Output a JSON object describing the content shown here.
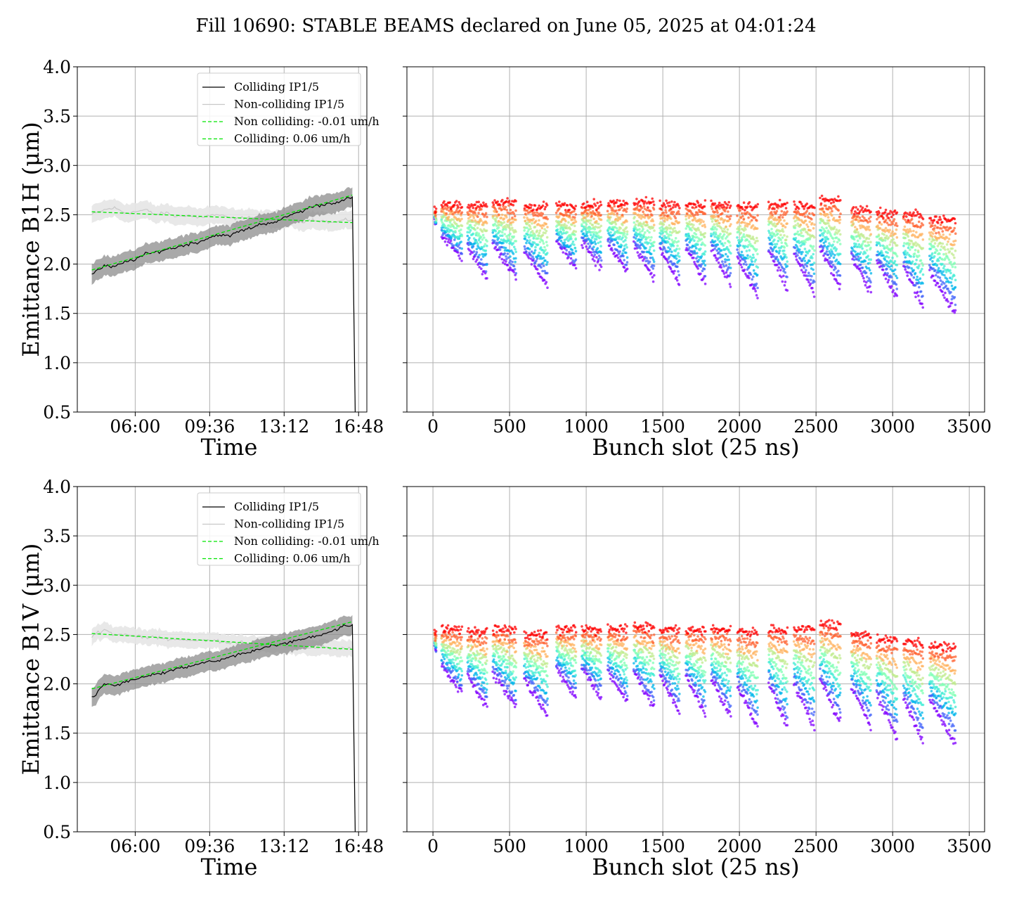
{
  "figure": {
    "suptitle": "Fill 10690: STABLE BEAMS declared on June 05, 2025 at 04:01:24"
  },
  "colors": {
    "colliding": "#000000",
    "non_colliding": "#c8c8c8",
    "band_colliding": "#8c8c8c",
    "band_non_colliding": "#e6e6e6",
    "fit": "#00e600",
    "grid": "#b0b0b0",
    "rainbow": [
      "#8000ff",
      "#4062fa",
      "#00b5eb",
      "#40ecd4",
      "#80ffb4",
      "#c0eb8d",
      "#ffb360",
      "#ff6230",
      "#ff0000"
    ]
  },
  "chart_data": [
    {
      "type": "line",
      "panel": "B1H-time",
      "xlabel": "Time",
      "ylabel": "Emittance B1H (μm)",
      "xticks": [
        "06:00",
        "09:36",
        "13:12",
        "16:48"
      ],
      "xtick_hours": [
        6.0,
        9.6,
        13.2,
        16.8
      ],
      "xlim_hours": [
        3.2,
        17.2
      ],
      "ylim": [
        0.5,
        4.0
      ],
      "yticks": [
        "0.5",
        "1.0",
        "1.5",
        "2.0",
        "2.5",
        "3.0",
        "3.5",
        "4.0"
      ],
      "grid": true,
      "legend_placement": "upper right",
      "legend": [
        "Colliding IP1/5",
        "Non-colliding IP1/5",
        "Non colliding: -0.01 um/h",
        "Colliding: 0.06 um/h"
      ],
      "series": [
        {
          "name": "Colliding IP1/5",
          "x_hours": [
            3.9,
            4.5,
            5.0,
            5.5,
            6.0,
            6.5,
            7.0,
            7.5,
            8.0,
            8.5,
            9.0,
            9.5,
            10.0,
            10.5,
            11.0,
            11.5,
            12.0,
            12.5,
            13.0,
            13.5,
            14.0,
            14.5,
            15.0,
            15.5,
            16.0,
            16.5
          ],
          "values": [
            1.9,
            1.98,
            1.97,
            2.02,
            2.05,
            2.1,
            2.12,
            2.15,
            2.17,
            2.2,
            2.22,
            2.26,
            2.3,
            2.28,
            2.33,
            2.36,
            2.4,
            2.42,
            2.44,
            2.5,
            2.53,
            2.58,
            2.6,
            2.62,
            2.64,
            2.68
          ],
          "band_halfwidth": 0.1
        },
        {
          "name": "Non-colliding IP1/5",
          "x_hours": [
            3.9,
            4.5,
            5.0,
            5.5,
            6.0,
            6.5,
            7.0,
            7.5,
            8.0,
            8.5,
            9.0,
            9.5,
            10.0,
            10.5,
            11.0,
            11.5,
            12.0,
            12.5,
            13.0,
            13.5,
            14.0,
            14.5,
            15.0,
            15.5,
            16.0,
            16.5
          ],
          "values": [
            2.5,
            2.55,
            2.57,
            2.52,
            2.53,
            2.55,
            2.5,
            2.52,
            2.48,
            2.5,
            2.47,
            2.49,
            2.5,
            2.47,
            2.46,
            2.48,
            2.45,
            2.46,
            2.44,
            2.47,
            2.43,
            2.45,
            2.44,
            2.42,
            2.44,
            2.45
          ],
          "band_halfwidth": 0.09
        },
        {
          "name": "Non colliding: -0.01 um/h",
          "x_hours": [
            3.9,
            16.5
          ],
          "values": [
            2.53,
            2.42
          ]
        },
        {
          "name": "Colliding: 0.06 um/h",
          "x_hours": [
            3.9,
            16.5
          ],
          "values": [
            1.94,
            2.7
          ]
        }
      ]
    },
    {
      "type": "scatter",
      "panel": "B1H-bunch",
      "xlabel": "Bunch slot (25 ns)",
      "xticks": [
        0,
        500,
        1000,
        1500,
        2000,
        2500,
        3000,
        3500
      ],
      "xlim": [
        -170,
        3600
      ],
      "ylim": [
        0.5,
        4.0
      ],
      "grid": true,
      "colormap": "rainbow (purple = early, red = late)",
      "trains": [
        {
          "start": 10,
          "end": 20,
          "top": 2.55,
          "low": 2.35
        },
        {
          "start": 55,
          "end": 190,
          "top": 2.6,
          "low": 2.05
        },
        {
          "start": 225,
          "end": 355,
          "top": 2.6,
          "low": 1.85
        },
        {
          "start": 390,
          "end": 545,
          "top": 2.62,
          "low": 1.85
        },
        {
          "start": 595,
          "end": 750,
          "top": 2.58,
          "low": 1.78
        },
        {
          "start": 805,
          "end": 935,
          "top": 2.58,
          "low": 1.95
        },
        {
          "start": 970,
          "end": 1100,
          "top": 2.6,
          "low": 1.95
        },
        {
          "start": 1140,
          "end": 1270,
          "top": 2.62,
          "low": 1.9
        },
        {
          "start": 1310,
          "end": 1445,
          "top": 2.62,
          "low": 1.85
        },
        {
          "start": 1480,
          "end": 1610,
          "top": 2.6,
          "low": 1.8
        },
        {
          "start": 1650,
          "end": 1780,
          "top": 2.6,
          "low": 1.8
        },
        {
          "start": 1815,
          "end": 1945,
          "top": 2.6,
          "low": 1.8
        },
        {
          "start": 1985,
          "end": 2120,
          "top": 2.58,
          "low": 1.65
        },
        {
          "start": 2190,
          "end": 2315,
          "top": 2.6,
          "low": 1.75
        },
        {
          "start": 2355,
          "end": 2490,
          "top": 2.6,
          "low": 1.7
        },
        {
          "start": 2525,
          "end": 2660,
          "top": 2.65,
          "low": 1.75
        },
        {
          "start": 2730,
          "end": 2860,
          "top": 2.55,
          "low": 1.7
        },
        {
          "start": 2895,
          "end": 3030,
          "top": 2.52,
          "low": 1.65
        },
        {
          "start": 3070,
          "end": 3200,
          "top": 2.5,
          "low": 1.55
        },
        {
          "start": 3240,
          "end": 3410,
          "top": 2.45,
          "low": 1.5
        }
      ]
    },
    {
      "type": "line",
      "panel": "B1V-time",
      "xlabel": "Time",
      "ylabel": "Emittance B1V (μm)",
      "xticks": [
        "06:00",
        "09:36",
        "13:12",
        "16:48"
      ],
      "xtick_hours": [
        6.0,
        9.6,
        13.2,
        16.8
      ],
      "xlim_hours": [
        3.2,
        17.2
      ],
      "ylim": [
        0.5,
        4.0
      ],
      "yticks": [
        "0.5",
        "1.0",
        "1.5",
        "2.0",
        "2.5",
        "3.0",
        "3.5",
        "4.0"
      ],
      "grid": true,
      "legend_placement": "upper right",
      "legend": [
        "Colliding IP1/5",
        "Non-colliding IP1/5",
        "Non colliding: -0.01 um/h",
        "Colliding: 0.06 um/h"
      ],
      "series": [
        {
          "name": "Colliding IP1/5",
          "x_hours": [
            3.9,
            4.5,
            5.0,
            5.5,
            6.0,
            6.5,
            7.0,
            7.5,
            8.0,
            8.5,
            9.0,
            9.5,
            10.0,
            10.5,
            11.0,
            11.5,
            12.0,
            12.5,
            13.0,
            13.5,
            14.0,
            14.5,
            15.0,
            15.5,
            16.0,
            16.5
          ],
          "values": [
            1.85,
            2.0,
            1.98,
            2.02,
            2.05,
            2.08,
            2.1,
            2.12,
            2.15,
            2.17,
            2.2,
            2.22,
            2.24,
            2.26,
            2.3,
            2.32,
            2.35,
            2.38,
            2.4,
            2.42,
            2.45,
            2.48,
            2.5,
            2.53,
            2.58,
            2.6
          ],
          "band_halfwidth": 0.1
        },
        {
          "name": "Non-colliding IP1/5",
          "x_hours": [
            3.9,
            4.5,
            5.0,
            5.5,
            6.0,
            6.5,
            7.0,
            7.5,
            8.0,
            8.5,
            9.0,
            9.5,
            10.0,
            10.5,
            11.0,
            11.5,
            12.0,
            12.5,
            13.0,
            13.5,
            14.0,
            14.5,
            15.0,
            15.5,
            16.0,
            16.5
          ],
          "values": [
            2.48,
            2.55,
            2.5,
            2.5,
            2.48,
            2.47,
            2.47,
            2.46,
            2.45,
            2.45,
            2.44,
            2.44,
            2.43,
            2.42,
            2.42,
            2.41,
            2.4,
            2.4,
            2.39,
            2.38,
            2.38,
            2.37,
            2.37,
            2.36,
            2.36,
            2.35
          ],
          "band_halfwidth": 0.08
        },
        {
          "name": "Non colliding: -0.01 um/h",
          "x_hours": [
            3.9,
            16.5
          ],
          "values": [
            2.51,
            2.35
          ]
        },
        {
          "name": "Colliding: 0.06 um/h",
          "x_hours": [
            3.9,
            16.5
          ],
          "values": [
            1.95,
            2.63
          ]
        }
      ]
    },
    {
      "type": "scatter",
      "panel": "B1V-bunch",
      "xlabel": "Bunch slot (25 ns)",
      "xticks": [
        0,
        500,
        1000,
        1500,
        2000,
        2500,
        3000,
        3500
      ],
      "xlim": [
        -170,
        3600
      ],
      "ylim": [
        0.5,
        4.0
      ],
      "grid": true,
      "colormap": "rainbow (purple = early, red = late)",
      "trains": [
        {
          "start": 10,
          "end": 20,
          "top": 2.5,
          "low": 2.3
        },
        {
          "start": 55,
          "end": 190,
          "top": 2.55,
          "low": 1.9
        },
        {
          "start": 225,
          "end": 355,
          "top": 2.52,
          "low": 1.75
        },
        {
          "start": 390,
          "end": 545,
          "top": 2.55,
          "low": 1.75
        },
        {
          "start": 595,
          "end": 750,
          "top": 2.5,
          "low": 1.68
        },
        {
          "start": 805,
          "end": 935,
          "top": 2.55,
          "low": 1.85
        },
        {
          "start": 970,
          "end": 1100,
          "top": 2.55,
          "low": 1.85
        },
        {
          "start": 1140,
          "end": 1270,
          "top": 2.55,
          "low": 1.8
        },
        {
          "start": 1310,
          "end": 1445,
          "top": 2.58,
          "low": 1.75
        },
        {
          "start": 1480,
          "end": 1610,
          "top": 2.55,
          "low": 1.7
        },
        {
          "start": 1650,
          "end": 1780,
          "top": 2.55,
          "low": 1.68
        },
        {
          "start": 1815,
          "end": 1945,
          "top": 2.55,
          "low": 1.65
        },
        {
          "start": 1985,
          "end": 2120,
          "top": 2.52,
          "low": 1.55
        },
        {
          "start": 2190,
          "end": 2315,
          "top": 2.55,
          "low": 1.55
        },
        {
          "start": 2355,
          "end": 2490,
          "top": 2.55,
          "low": 1.55
        },
        {
          "start": 2525,
          "end": 2660,
          "top": 2.6,
          "low": 1.6
        },
        {
          "start": 2730,
          "end": 2860,
          "top": 2.5,
          "low": 1.55
        },
        {
          "start": 2895,
          "end": 3030,
          "top": 2.45,
          "low": 1.45
        },
        {
          "start": 3070,
          "end": 3200,
          "top": 2.42,
          "low": 1.4
        },
        {
          "start": 3240,
          "end": 3410,
          "top": 2.38,
          "low": 1.4
        }
      ]
    }
  ]
}
